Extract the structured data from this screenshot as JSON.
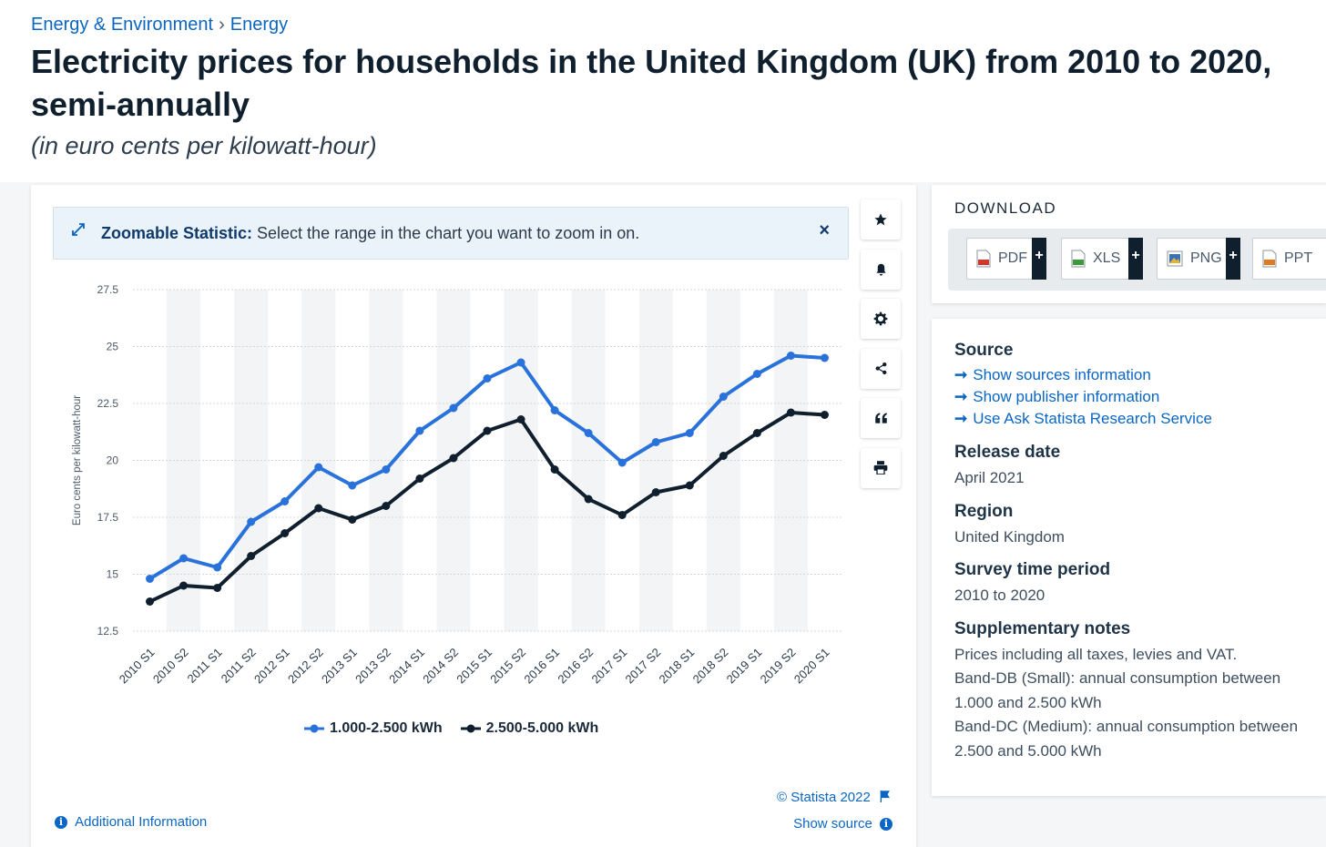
{
  "breadcrumb": {
    "item1": "Energy & Environment",
    "sep": "›",
    "item2": "Energy"
  },
  "title": "Electricity prices for households in the United Kingdom (UK) from 2010 to 2020, semi-annually",
  "subtitle": "(in euro cents per kilowatt-hour)",
  "zoom": {
    "bold": "Zoomable Statistic:",
    "text": " Select the range in the chart you want to zoom in on.",
    "close": "×"
  },
  "toolbar": {
    "icons": [
      "star-icon",
      "bell-icon",
      "gear-icon",
      "share-icon",
      "quote-icon",
      "print-icon"
    ]
  },
  "colors": {
    "series1": "#2a72db",
    "series2": "#0f1f2e",
    "accent": "#0b66c3"
  },
  "chart_data": {
    "type": "line",
    "ylabel": "Euro cents per kilowatt-hour",
    "ylim": [
      12.5,
      27.5
    ],
    "yticks": [
      "12.5",
      "15",
      "17.5",
      "20",
      "22.5",
      "25",
      "27.5"
    ],
    "grid": true,
    "legend_position": "bottom",
    "categories": [
      "2010 S1",
      "2010 S2",
      "2011 S1",
      "2011 S2",
      "2012 S1",
      "2012 S2",
      "2013 S1",
      "2013 S2",
      "2014 S1",
      "2014 S2",
      "2015 S1",
      "2015 S2",
      "2016 S1",
      "2016 S2",
      "2017 S1",
      "2017 S2",
      "2018 S1",
      "2018 S2",
      "2019 S1",
      "2019 S2",
      "2020 S1"
    ],
    "series": [
      {
        "name": "1.000-2.500 kWh",
        "color": "#2a72db",
        "values": [
          14.8,
          15.7,
          15.3,
          17.3,
          18.2,
          19.7,
          18.9,
          19.6,
          21.3,
          22.3,
          23.6,
          24.3,
          22.2,
          21.2,
          19.9,
          20.8,
          21.2,
          22.8,
          23.8,
          24.6,
          24.5
        ]
      },
      {
        "name": "2.500-5.000 kWh",
        "color": "#0f1f2e",
        "values": [
          13.8,
          14.5,
          14.4,
          15.8,
          16.8,
          17.9,
          17.4,
          18.0,
          19.2,
          20.1,
          21.3,
          21.8,
          19.6,
          18.3,
          17.6,
          18.6,
          18.9,
          20.2,
          21.2,
          22.1,
          22.0
        ]
      }
    ]
  },
  "footer": {
    "copyright": "© Statista 2022",
    "additional_info": "Additional Information",
    "show_source": "Show source"
  },
  "download": {
    "title": "DOWNLOAD",
    "buttons": [
      {
        "label": "PDF",
        "plus": "+",
        "icon": "pdf-file-icon",
        "color": "#d9342b"
      },
      {
        "label": "XLS",
        "plus": "+",
        "icon": "xls-file-icon",
        "color": "#3f9a3a"
      },
      {
        "label": "PNG",
        "plus": "+",
        "icon": "png-file-icon",
        "color": "#3b6fb6"
      },
      {
        "label": "PPT",
        "plus": "+",
        "icon": "ppt-file-icon",
        "color": "#e07a1f"
      }
    ]
  },
  "info": {
    "source_heading": "Source",
    "links": [
      "Show sources information",
      "Show publisher information",
      "Use Ask Statista Research Service"
    ],
    "release_heading": "Release date",
    "release_value": "April 2021",
    "region_heading": "Region",
    "region_value": "United Kingdom",
    "period_heading": "Survey time period",
    "period_value": "2010 to 2020",
    "notes_heading": "Supplementary notes",
    "notes": [
      "Prices including all taxes, levies and VAT.",
      "Band-DB (Small): annual consumption between 1.000 and 2.500 kWh",
      "Band-DC (Medium): annual consumption between 2.500 and 5.000 kWh"
    ]
  }
}
